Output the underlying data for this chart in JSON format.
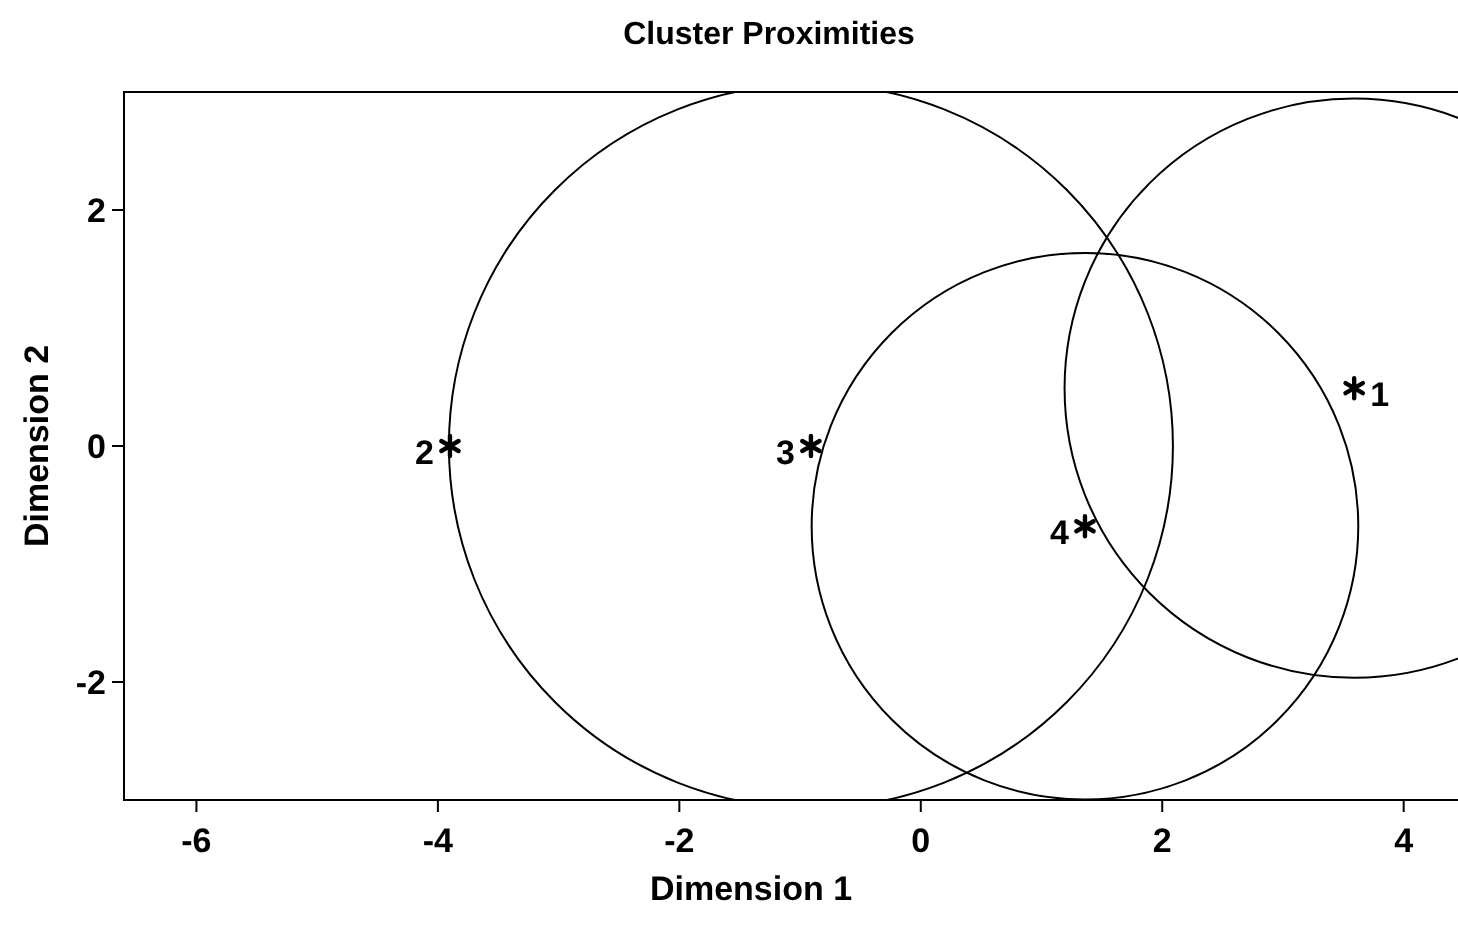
{
  "chart_data": {
    "type": "bubble",
    "title": "Cluster Proximities",
    "xlabel": "Dimension 1",
    "ylabel": "Dimension 2",
    "x": [
      3.59,
      -3.9,
      -0.91,
      1.36
    ],
    "values": [
      0.49,
      0,
      0,
      -0.68
    ],
    "sizes": [
      0.64,
      null,
      1,
      0.57
    ],
    "color": "#000000",
    "xlim": [
      -6.6,
      4.45
    ],
    "ylim": [
      -3,
      3
    ],
    "xticks": [
      -6,
      -4,
      -2,
      0,
      2,
      4
    ],
    "yticks": [
      -2,
      0,
      2
    ],
    "annotations": [
      {
        "text": "1",
        "x": 3.59,
        "y": 0.49
      },
      {
        "text": "2",
        "x": -3.9,
        "y": 0
      },
      {
        "text": "3",
        "x": -0.91,
        "y": 0
      },
      {
        "text": "4",
        "x": 1.36,
        "y": -0.68
      }
    ]
  }
}
